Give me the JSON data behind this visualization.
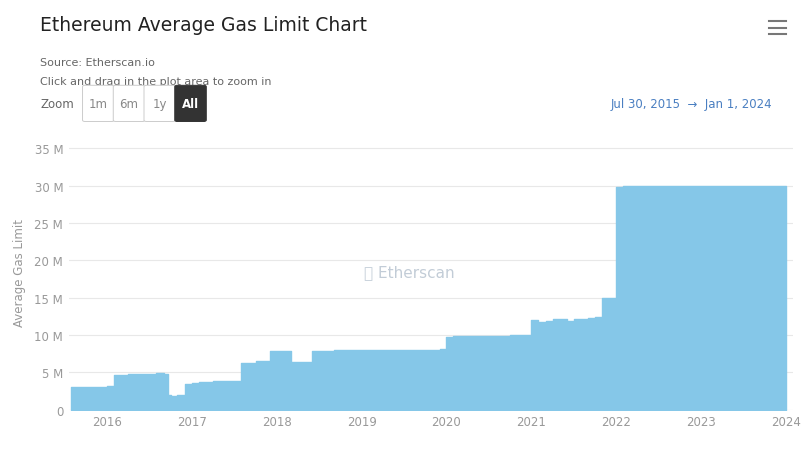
{
  "title": "Ethereum Average Gas Limit Chart",
  "source_line1": "Source: Etherscan.io",
  "source_line2": "Click and drag in the plot area to zoom in",
  "zoom_label": "Zoom",
  "zoom_buttons": [
    "1m",
    "6m",
    "1y",
    "All"
  ],
  "active_button": "All",
  "date_range": "Jul 30, 2015  →  Jan 1, 2024",
  "ylabel": "Average Gas Limit",
  "watermark": "ⓘ Etherscan",
  "fill_color": "#85c7e8",
  "line_color": "#85c7e8",
  "background_color": "#ffffff",
  "plot_bg_color": "#ffffff",
  "grid_color": "#e8e8e8",
  "title_color": "#222222",
  "source_color": "#666666",
  "axis_color": "#999999",
  "watermark_color": "#b8c4d0",
  "zoom_active_bg": "#333333",
  "zoom_active_fg": "#ffffff",
  "zoom_inactive_fg": "#888888",
  "date_range_color": "#4a7fc1",
  "ylim": [
    0,
    37000000
  ],
  "yticks": [
    0,
    5000000,
    10000000,
    15000000,
    20000000,
    25000000,
    30000000,
    35000000
  ],
  "ytick_labels": [
    "0",
    "5 M",
    "10 M",
    "15 M",
    "20 M",
    "25 M",
    "30 M",
    "35 M"
  ],
  "data_x": [
    2015.58,
    2015.83,
    2016.0,
    2016.08,
    2016.25,
    2016.42,
    2016.58,
    2016.67,
    2016.72,
    2016.75,
    2016.83,
    2016.92,
    2017.0,
    2017.08,
    2017.17,
    2017.25,
    2017.42,
    2017.58,
    2017.75,
    2017.92,
    2018.0,
    2018.08,
    2018.17,
    2018.42,
    2018.67,
    2018.92,
    2019.0,
    2019.25,
    2019.5,
    2019.75,
    2019.92,
    2020.0,
    2020.08,
    2020.25,
    2020.42,
    2020.58,
    2020.75,
    2020.83,
    2020.92,
    2021.0,
    2021.08,
    2021.17,
    2021.25,
    2021.42,
    2021.5,
    2021.58,
    2021.67,
    2021.75,
    2021.83,
    2021.92,
    2022.0,
    2022.08,
    2022.25,
    2022.5,
    2022.75,
    2023.0,
    2023.25,
    2023.5,
    2023.75,
    2024.0
  ],
  "data_y": [
    3000000,
    3100000,
    3200000,
    4700000,
    4750000,
    4800000,
    4850000,
    4800000,
    2000000,
    1800000,
    2000000,
    3500000,
    3600000,
    3700000,
    3750000,
    3800000,
    3900000,
    6200000,
    6500000,
    7800000,
    7900000,
    7900000,
    6400000,
    7800000,
    7950000,
    8000000,
    8000000,
    8000000,
    8000000,
    8000000,
    8100000,
    9800000,
    9850000,
    9900000,
    9900000,
    9900000,
    9950000,
    9950000,
    9950000,
    12000000,
    11800000,
    11900000,
    12100000,
    11900000,
    12100000,
    12200000,
    12300000,
    12400000,
    14900000,
    15000000,
    29900000,
    30000000,
    30000000,
    30000000,
    30000000,
    30000000,
    30000000,
    30000000,
    30000000,
    30000000
  ]
}
